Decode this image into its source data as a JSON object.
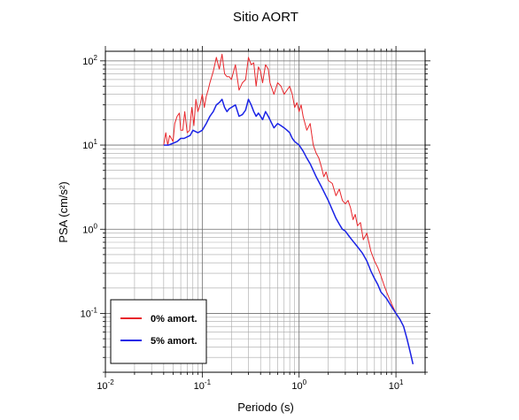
{
  "chart_data": {
    "type": "line",
    "title": "Sitio AORT",
    "xlabel": "Periodo (s)",
    "ylabel": "PSA (cm/s²)",
    "xscale": "log",
    "yscale": "log",
    "xlim": [
      0.01,
      20
    ],
    "ylim": [
      0.02,
      130
    ],
    "grid": true,
    "legend_position": "bottom-left",
    "x_ticks": [
      {
        "base": "10",
        "exp": "-2"
      },
      {
        "base": "10",
        "exp": "-1"
      },
      {
        "base": "10",
        "exp": "0"
      },
      {
        "base": "10",
        "exp": "1"
      }
    ],
    "y_ticks": [
      {
        "base": "10",
        "exp": "-1"
      },
      {
        "base": "10",
        "exp": "0"
      },
      {
        "base": "10",
        "exp": "1"
      },
      {
        "base": "10",
        "exp": "2"
      }
    ],
    "series": [
      {
        "name": "0% amort.",
        "color": "#e8262b",
        "points": [
          [
            0.04,
            10
          ],
          [
            0.042,
            14
          ],
          [
            0.044,
            10
          ],
          [
            0.046,
            13
          ],
          [
            0.048,
            12
          ],
          [
            0.05,
            11
          ],
          [
            0.052,
            18
          ],
          [
            0.055,
            22
          ],
          [
            0.058,
            24
          ],
          [
            0.06,
            15
          ],
          [
            0.063,
            15
          ],
          [
            0.066,
            25
          ],
          [
            0.07,
            14
          ],
          [
            0.074,
            15
          ],
          [
            0.078,
            28
          ],
          [
            0.082,
            17
          ],
          [
            0.086,
            35
          ],
          [
            0.09,
            25
          ],
          [
            0.095,
            30
          ],
          [
            0.1,
            40
          ],
          [
            0.105,
            28
          ],
          [
            0.11,
            38
          ],
          [
            0.115,
            45
          ],
          [
            0.12,
            55
          ],
          [
            0.13,
            75
          ],
          [
            0.14,
            110
          ],
          [
            0.15,
            80
          ],
          [
            0.16,
            120
          ],
          [
            0.17,
            70
          ],
          [
            0.18,
            65
          ],
          [
            0.19,
            65
          ],
          [
            0.2,
            60
          ],
          [
            0.22,
            90
          ],
          [
            0.24,
            45
          ],
          [
            0.26,
            55
          ],
          [
            0.28,
            60
          ],
          [
            0.3,
            110
          ],
          [
            0.32,
            90
          ],
          [
            0.34,
            95
          ],
          [
            0.36,
            50
          ],
          [
            0.38,
            85
          ],
          [
            0.4,
            75
          ],
          [
            0.42,
            55
          ],
          [
            0.45,
            90
          ],
          [
            0.48,
            80
          ],
          [
            0.5,
            55
          ],
          [
            0.55,
            40
          ],
          [
            0.6,
            55
          ],
          [
            0.65,
            50
          ],
          [
            0.7,
            40
          ],
          [
            0.75,
            45
          ],
          [
            0.8,
            50
          ],
          [
            0.85,
            40
          ],
          [
            0.9,
            28
          ],
          [
            0.95,
            32
          ],
          [
            1.0,
            25
          ],
          [
            1.05,
            30
          ],
          [
            1.1,
            22
          ],
          [
            1.2,
            15
          ],
          [
            1.3,
            18
          ],
          [
            1.4,
            10
          ],
          [
            1.5,
            8
          ],
          [
            1.6,
            7
          ],
          [
            1.7,
            5.5
          ],
          [
            1.8,
            4.2
          ],
          [
            1.9,
            4.8
          ],
          [
            2.0,
            3.8
          ],
          [
            2.2,
            3.5
          ],
          [
            2.4,
            2.5
          ],
          [
            2.6,
            3.0
          ],
          [
            2.8,
            2.2
          ],
          [
            3.0,
            2.0
          ],
          [
            3.2,
            2.2
          ],
          [
            3.4,
            1.8
          ],
          [
            3.6,
            1.3
          ],
          [
            3.8,
            1.5
          ],
          [
            4.0,
            1.1
          ],
          [
            4.3,
            1.2
          ],
          [
            4.6,
            0.75
          ],
          [
            5.0,
            0.9
          ],
          [
            5.5,
            0.55
          ],
          [
            6.0,
            0.42
          ],
          [
            6.5,
            0.35
          ],
          [
            7.0,
            0.28
          ],
          [
            7.5,
            0.22
          ],
          [
            8.0,
            0.18
          ],
          [
            9.0,
            0.13
          ],
          [
            10.0,
            0.1
          ],
          [
            11.0,
            0.085
          ],
          [
            12.0,
            0.07
          ],
          [
            13.0,
            0.05
          ],
          [
            14.0,
            0.035
          ],
          [
            15.0,
            0.025
          ]
        ]
      },
      {
        "name": "5% amort.",
        "color": "#1a23e6",
        "points": [
          [
            0.04,
            10
          ],
          [
            0.045,
            10
          ],
          [
            0.05,
            10.5
          ],
          [
            0.055,
            11
          ],
          [
            0.06,
            12
          ],
          [
            0.065,
            12
          ],
          [
            0.07,
            12.5
          ],
          [
            0.075,
            13
          ],
          [
            0.08,
            15
          ],
          [
            0.085,
            14.5
          ],
          [
            0.09,
            14
          ],
          [
            0.1,
            15
          ],
          [
            0.11,
            18
          ],
          [
            0.12,
            22
          ],
          [
            0.13,
            25
          ],
          [
            0.14,
            30
          ],
          [
            0.15,
            32
          ],
          [
            0.16,
            35
          ],
          [
            0.17,
            28
          ],
          [
            0.18,
            25
          ],
          [
            0.19,
            27
          ],
          [
            0.2,
            28
          ],
          [
            0.22,
            30
          ],
          [
            0.24,
            22
          ],
          [
            0.26,
            23
          ],
          [
            0.28,
            26
          ],
          [
            0.3,
            35
          ],
          [
            0.32,
            30
          ],
          [
            0.34,
            25
          ],
          [
            0.36,
            22
          ],
          [
            0.38,
            24
          ],
          [
            0.4,
            22
          ],
          [
            0.42,
            20
          ],
          [
            0.45,
            25
          ],
          [
            0.48,
            22
          ],
          [
            0.5,
            20
          ],
          [
            0.55,
            16
          ],
          [
            0.6,
            18
          ],
          [
            0.65,
            17
          ],
          [
            0.7,
            16
          ],
          [
            0.75,
            15
          ],
          [
            0.8,
            14
          ],
          [
            0.85,
            12
          ],
          [
            0.9,
            11
          ],
          [
            1.0,
            10
          ],
          [
            1.1,
            8.5
          ],
          [
            1.2,
            7
          ],
          [
            1.3,
            6
          ],
          [
            1.4,
            5
          ],
          [
            1.5,
            4.2
          ],
          [
            1.7,
            3.2
          ],
          [
            2.0,
            2.2
          ],
          [
            2.2,
            1.7
          ],
          [
            2.4,
            1.35
          ],
          [
            2.6,
            1.15
          ],
          [
            2.8,
            1.0
          ],
          [
            3.0,
            0.95
          ],
          [
            3.3,
            0.82
          ],
          [
            3.6,
            0.72
          ],
          [
            4.0,
            0.62
          ],
          [
            4.5,
            0.52
          ],
          [
            5.0,
            0.42
          ],
          [
            5.5,
            0.32
          ],
          [
            6.0,
            0.26
          ],
          [
            6.5,
            0.22
          ],
          [
            7.0,
            0.18
          ],
          [
            8.0,
            0.15
          ],
          [
            9.0,
            0.12
          ],
          [
            10.0,
            0.1
          ],
          [
            11.0,
            0.085
          ],
          [
            12.0,
            0.07
          ],
          [
            13.0,
            0.05
          ],
          [
            14.0,
            0.035
          ],
          [
            15.0,
            0.025
          ]
        ]
      }
    ]
  }
}
